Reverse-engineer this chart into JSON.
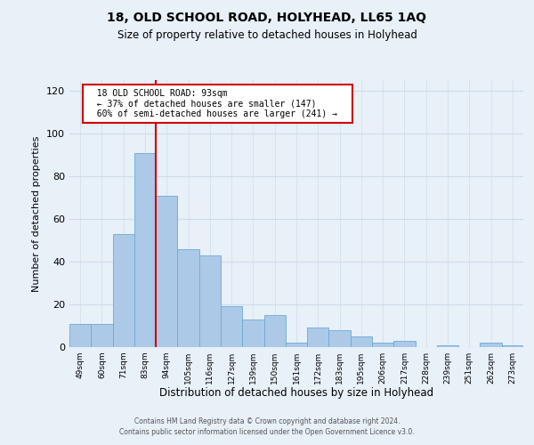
{
  "title": "18, OLD SCHOOL ROAD, HOLYHEAD, LL65 1AQ",
  "subtitle": "Size of property relative to detached houses in Holyhead",
  "xlabel": "Distribution of detached houses by size in Holyhead",
  "ylabel": "Number of detached properties",
  "bar_labels": [
    "49sqm",
    "60sqm",
    "71sqm",
    "83sqm",
    "94sqm",
    "105sqm",
    "116sqm",
    "127sqm",
    "139sqm",
    "150sqm",
    "161sqm",
    "172sqm",
    "183sqm",
    "195sqm",
    "206sqm",
    "217sqm",
    "228sqm",
    "239sqm",
    "251sqm",
    "262sqm",
    "273sqm"
  ],
  "bar_values": [
    11,
    11,
    53,
    91,
    71,
    46,
    43,
    19,
    13,
    15,
    2,
    9,
    8,
    5,
    2,
    3,
    0,
    1,
    0,
    2,
    1
  ],
  "bar_color": "#adc9e8",
  "bar_edge_color": "#6aaad4",
  "highlight_index": 4,
  "highlight_line_color": "#cc0000",
  "ylim": [
    0,
    125
  ],
  "yticks": [
    0,
    20,
    40,
    60,
    80,
    100,
    120
  ],
  "annotation_title": "18 OLD SCHOOL ROAD: 93sqm",
  "annotation_line1": "← 37% of detached houses are smaller (147)",
  "annotation_line2": "60% of semi-detached houses are larger (241) →",
  "annotation_box_color": "#ffffff",
  "annotation_box_edge_color": "#cc0000",
  "grid_color": "#d0dce8",
  "background_color": "#e8f0f8",
  "footer_line1": "Contains HM Land Registry data © Crown copyright and database right 2024.",
  "footer_line2": "Contains public sector information licensed under the Open Government Licence v3.0."
}
